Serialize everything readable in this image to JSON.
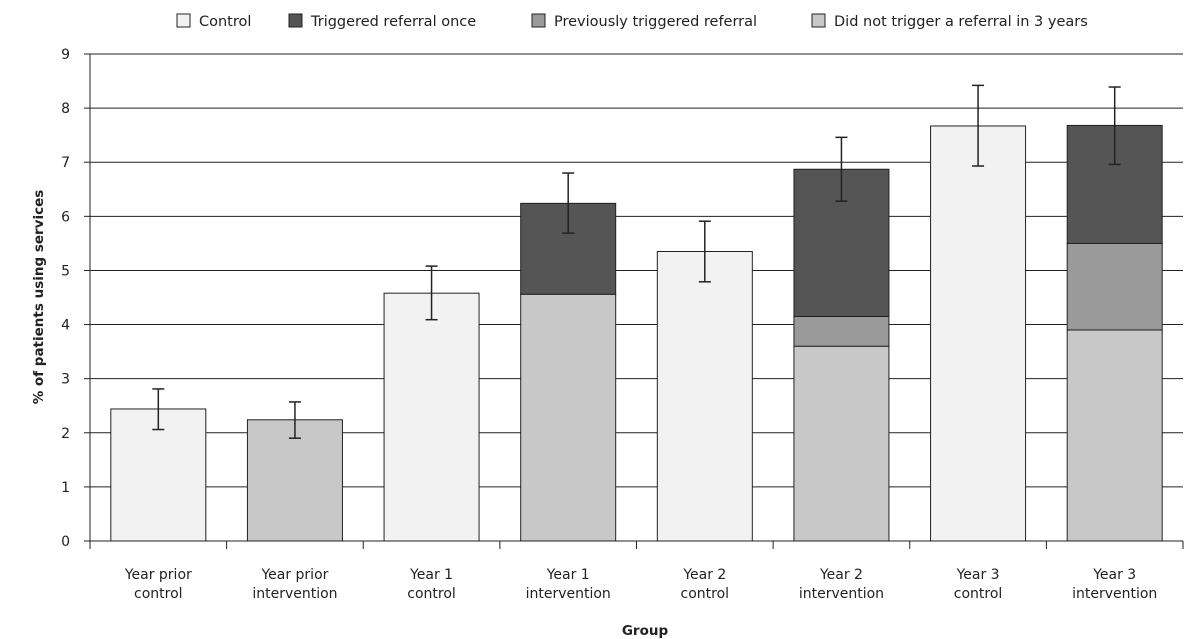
{
  "chart_data": {
    "type": "bar",
    "stacked": true,
    "xlabel": "Group",
    "ylabel": "% of patients using services",
    "ylim": [
      0,
      9
    ],
    "yticks": [
      0,
      1,
      2,
      3,
      4,
      5,
      6,
      7,
      8,
      9
    ],
    "grid": "horizontal",
    "legend_position": "top",
    "categories": [
      [
        "Year prior",
        "control"
      ],
      [
        "Year prior",
        "intervention"
      ],
      [
        "Year 1",
        "control"
      ],
      [
        "Year 1",
        "intervention"
      ],
      [
        "Year 2",
        "control"
      ],
      [
        "Year 2",
        "intervention"
      ],
      [
        "Year 3",
        "control"
      ],
      [
        "Year 3",
        "intervention"
      ]
    ],
    "series": [
      {
        "name": "Control",
        "color": "#f2f2f2",
        "values": [
          2.44,
          0,
          4.58,
          0,
          5.35,
          0,
          7.67,
          0
        ]
      },
      {
        "name": "Did not trigger a referral in 3 years",
        "color": "#c8c8c8",
        "values": [
          0,
          2.24,
          0,
          4.56,
          0,
          3.6,
          0,
          3.9
        ]
      },
      {
        "name": "Previously triggered referral",
        "color": "#9a9a9a",
        "values": [
          0,
          0,
          0,
          0,
          0,
          0.55,
          0,
          1.6
        ]
      },
      {
        "name": "Triggered referral once",
        "color": "#555555",
        "values": [
          0,
          0,
          0,
          1.68,
          0,
          2.72,
          0,
          2.18
        ]
      }
    ],
    "legend_order": [
      "Control",
      "Triggered referral once",
      "Previously triggered referral",
      "Did not trigger a referral in 3 years"
    ],
    "error_bars": [
      {
        "low": 2.06,
        "high": 2.81
      },
      {
        "low": 1.9,
        "high": 2.57
      },
      {
        "low": 4.09,
        "high": 5.08
      },
      {
        "low": 5.69,
        "high": 6.8
      },
      {
        "low": 4.79,
        "high": 5.91
      },
      {
        "low": 6.28,
        "high": 7.46
      },
      {
        "low": 6.93,
        "high": 8.42
      },
      {
        "low": 6.96,
        "high": 8.39
      }
    ]
  }
}
